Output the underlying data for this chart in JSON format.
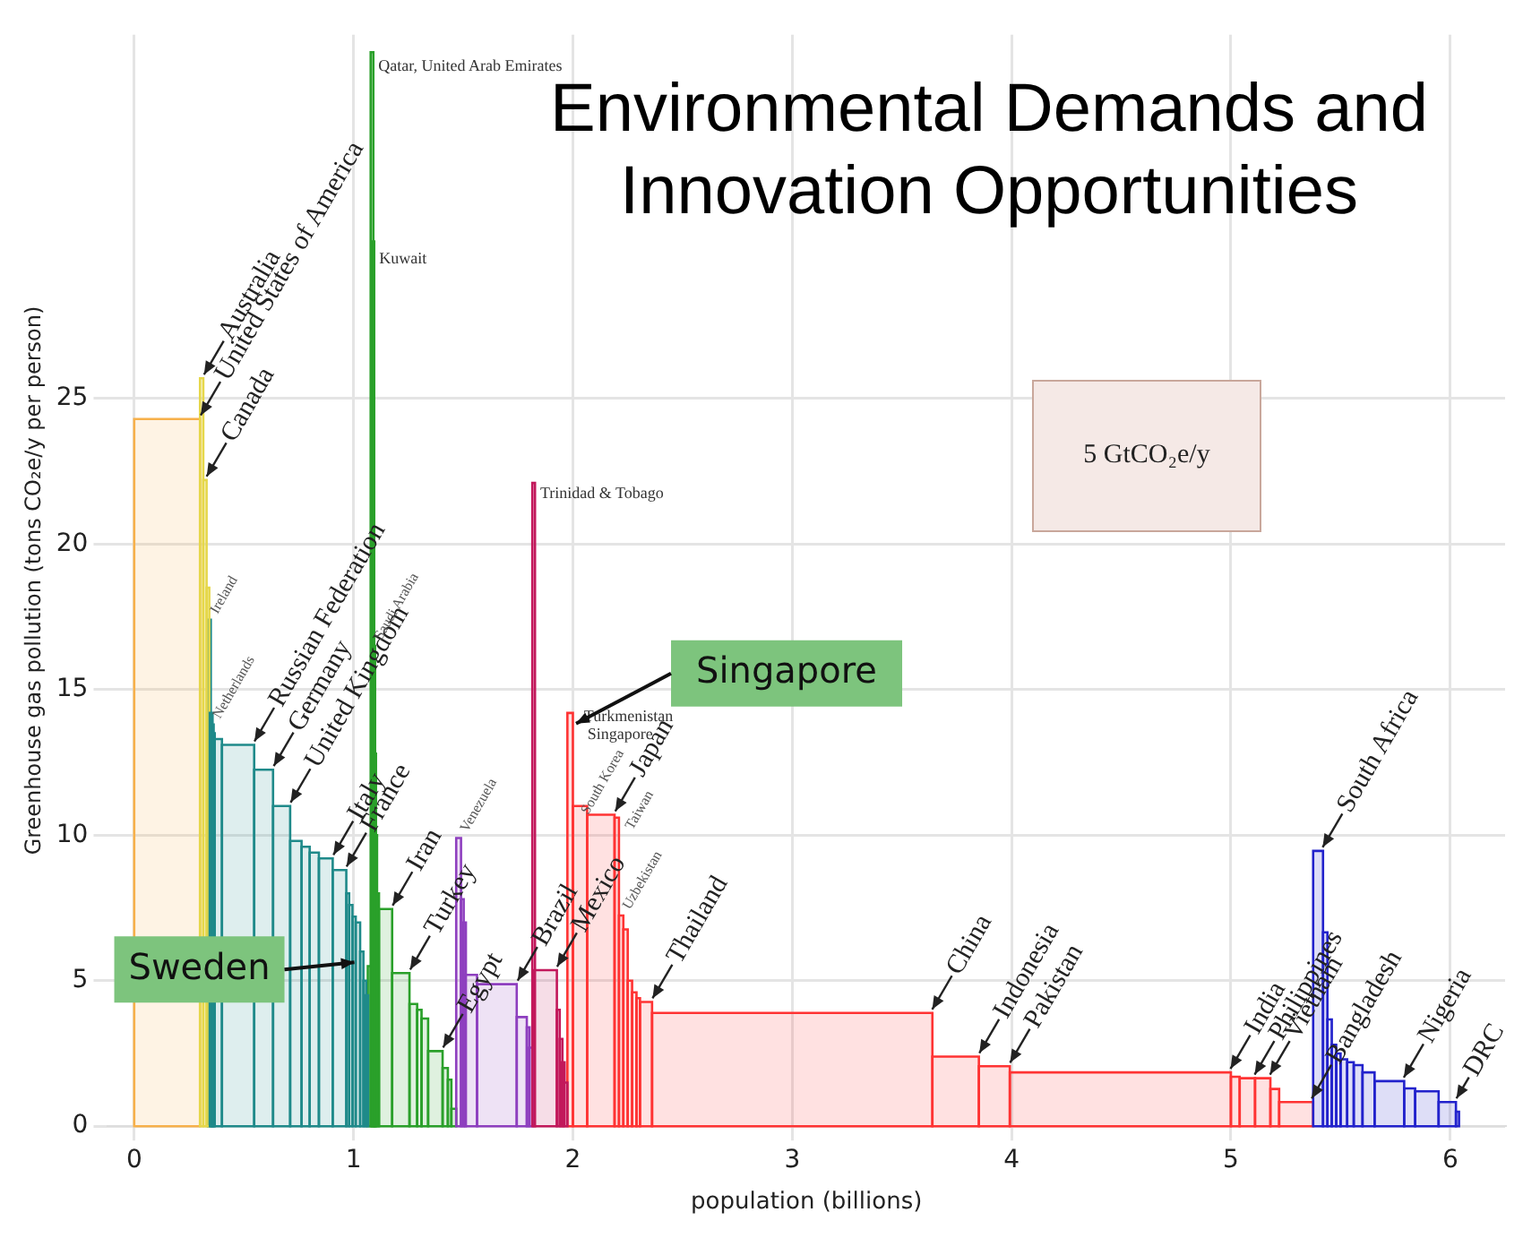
{
  "chart_data": {
    "type": "histogram",
    "title": "Environmental Demands and Innovation Opportunities",
    "xlabel": "population (billions)",
    "ylabel": "Greenhouse gas pollution (tons CO₂e/y per person)",
    "xlim": [
      -0.12,
      6.25
    ],
    "xticks": [
      0,
      1,
      2,
      3,
      4,
      5,
      6
    ],
    "ylim": [
      0,
      37.5
    ],
    "yticks": [
      0,
      5,
      10,
      15,
      20,
      25
    ],
    "grid": true,
    "bins": [
      0,
      0.3,
      0.315,
      0.33,
      0.337,
      0.345,
      0.35,
      0.355,
      0.36,
      0.4,
      0.547,
      0.633,
      0.711,
      0.763,
      0.8,
      0.842,
      0.905,
      0.967,
      0.98,
      0.995,
      1.01,
      1.03,
      1.045,
      1.055,
      1.065,
      1.078,
      1.082,
      1.086,
      1.09,
      1.095,
      1.1,
      1.116,
      1.176,
      1.255,
      1.29,
      1.31,
      1.34,
      1.406,
      1.43,
      1.446,
      1.468,
      1.49,
      1.5,
      1.51,
      1.563,
      1.744,
      1.79,
      1.8,
      1.815,
      1.822,
      1.927,
      1.94,
      1.95,
      1.96,
      1.975,
      2.0,
      2.065,
      2.19,
      2.21,
      2.23,
      2.25,
      2.27,
      2.29,
      2.306,
      2.361,
      3.639,
      3.851,
      3.992,
      5.0,
      5.04,
      5.11,
      5.18,
      5.22,
      5.375,
      5.42,
      5.44,
      5.46,
      5.48,
      5.5,
      5.53,
      5.56,
      5.6,
      5.655,
      5.79,
      5.84,
      5.947,
      6.026,
      6.04
    ],
    "values": [
      24.3,
      25.7,
      22.2,
      18.5,
      17.4,
      14.2,
      13.8,
      13.5,
      13.3,
      13.1,
      12.25,
      11.0,
      9.8,
      9.6,
      9.4,
      9.2,
      8.8,
      8.0,
      7.6,
      7.2,
      7.0,
      6.0,
      5.0,
      4.5,
      5.5,
      36.9,
      30.4,
      16.5,
      12.8,
      10.0,
      8.0,
      7.46,
      5.26,
      4.2,
      4.0,
      3.7,
      2.58,
      2.0,
      1.6,
      0.6,
      9.9,
      7.8,
      7.0,
      5.2,
      4.88,
      3.75,
      3.4,
      2.7,
      22.1,
      5.36,
      4.0,
      3.0,
      2.2,
      1.5,
      14.2,
      11.0,
      10.7,
      10.6,
      7.24,
      6.76,
      5.0,
      4.6,
      4.4,
      4.27,
      3.89,
      2.39,
      2.06,
      1.85,
      1.7,
      1.65,
      1.65,
      1.28,
      0.83,
      9.46,
      6.66,
      3.67,
      2.8,
      2.5,
      2.3,
      2.2,
      2.1,
      1.85,
      1.55,
      1.3,
      1.2,
      0.83,
      0.5
    ],
    "colors": [
      "#f7b04a",
      "#e6d74a",
      "#e6d74a",
      "#e6d74a",
      "#1f8a8a",
      "#1f8a8a",
      "#1f8a8a",
      "#1f8a8a",
      "#1f8a8a",
      "#1f8a8a",
      "#1f8a8a",
      "#1f8a8a",
      "#1f8a8a",
      "#1f8a8a",
      "#1f8a8a",
      "#1f8a8a",
      "#1f8a8a",
      "#1f8a8a",
      "#1f8a8a",
      "#1f8a8a",
      "#1f8a8a",
      "#1f8a8a",
      "#1f8a8a",
      "#1f8a8a",
      "#2aa02a",
      "#2aa02a",
      "#2aa02a",
      "#2aa02a",
      "#2aa02a",
      "#2aa02a",
      "#2aa02a",
      "#2aa02a",
      "#2aa02a",
      "#2aa02a",
      "#2aa02a",
      "#2aa02a",
      "#2aa02a",
      "#2aa02a",
      "#2aa02a",
      "#2aa02a",
      "#8e3fbf",
      "#8e3fbf",
      "#8e3fbf",
      "#8e3fbf",
      "#8e3fbf",
      "#8e3fbf",
      "#8e3fbf",
      "#8e3fbf",
      "#c2185b",
      "#c2185b",
      "#c2185b",
      "#c2185b",
      "#c2185b",
      "#c2185b",
      "#ff3333",
      "#ff3333",
      "#ff3333",
      "#ff3333",
      "#ff3333",
      "#ff3333",
      "#ff3333",
      "#ff3333",
      "#ff3333",
      "#ff3333",
      "#ff3333",
      "#ff3333",
      "#ff3333",
      "#ff3333",
      "#ff3333",
      "#ff3333",
      "#ff3333",
      "#ff3333",
      "#ff3333",
      "#2222cc",
      "#2222cc",
      "#2222cc",
      "#2222cc",
      "#2222cc",
      "#2222cc",
      "#2222cc",
      "#2222cc",
      "#2222cc",
      "#2222cc",
      "#2222cc",
      "#2222cc",
      "#2222cc",
      "#2222cc"
    ],
    "annotations": [
      {
        "text": "Australia",
        "x": 0.31,
        "y": 25.7
      },
      {
        "text": "United States of America",
        "x": 0.295,
        "y": 24.3
      },
      {
        "text": "Canada",
        "x": 0.322,
        "y": 22.2
      },
      {
        "text": "Ireland",
        "x": 0.34,
        "y": 17.4
      },
      {
        "text": "Netherlands",
        "x": 0.352,
        "y": 13.8
      },
      {
        "text": "Russian Federation",
        "x": 0.54,
        "y": 13.1
      },
      {
        "text": "Germany",
        "x": 0.628,
        "y": 12.25
      },
      {
        "text": "United Kingdom",
        "x": 0.705,
        "y": 11.0
      },
      {
        "text": "Italy",
        "x": 0.9,
        "y": 9.2
      },
      {
        "text": "France",
        "x": 0.96,
        "y": 8.8
      },
      {
        "text": "Saudi Arabia",
        "x": 1.088,
        "y": 16.5
      },
      {
        "text": "Qatar, United Arab Emirates",
        "x": 1.08,
        "y": 36.9
      },
      {
        "text": "Kuwait",
        "x": 1.084,
        "y": 30.4
      },
      {
        "text": "Iran",
        "x": 1.17,
        "y": 7.46
      },
      {
        "text": "Turkey",
        "x": 1.25,
        "y": 5.26
      },
      {
        "text": "Egypt",
        "x": 1.4,
        "y": 2.58
      },
      {
        "text": "Venezuela",
        "x": 1.48,
        "y": 9.9
      },
      {
        "text": "Brazil",
        "x": 1.74,
        "y": 4.88
      },
      {
        "text": "Mexico",
        "x": 1.92,
        "y": 5.36
      },
      {
        "text": "Trinidad & Tobago",
        "x": 1.818,
        "y": 22.1
      },
      {
        "text": "Turkmenistan",
        "x": 1.985,
        "y": 14.2
      },
      {
        "text": "Singapore",
        "x": 1.985,
        "y": 14.2
      },
      {
        "text": "South Korea",
        "x": 2.03,
        "y": 11.0
      },
      {
        "text": "Japan",
        "x": 2.185,
        "y": 10.7
      },
      {
        "text": "Taiwan",
        "x": 2.2,
        "y": 10.6
      },
      {
        "text": "Uzbekistan",
        "x": 2.22,
        "y": 7.24
      },
      {
        "text": "Thailand",
        "x": 2.355,
        "y": 4.27
      },
      {
        "text": "China",
        "x": 3.63,
        "y": 3.89
      },
      {
        "text": "Indonesia",
        "x": 3.845,
        "y": 2.39
      },
      {
        "text": "Pakistan",
        "x": 3.985,
        "y": 2.06
      },
      {
        "text": "India",
        "x": 4.99,
        "y": 1.85
      },
      {
        "text": "Philippines",
        "x": 5.1,
        "y": 1.65
      },
      {
        "text": "Vietnam",
        "x": 5.17,
        "y": 1.65
      },
      {
        "text": "South Africa",
        "x": 5.41,
        "y": 9.46
      },
      {
        "text": "Bangladesh",
        "x": 5.36,
        "y": 0.83
      },
      {
        "text": "Nigeria",
        "x": 5.78,
        "y": 1.55
      },
      {
        "text": "DRC",
        "x": 6.02,
        "y": 0.83
      },
      {
        "text": "Sweden",
        "x": 1.02,
        "y": 6.0
      },
      {
        "text": "Singapore",
        "x": 1.99,
        "y": 14.2
      },
      "5 GtCO₂e/y"
    ]
  }
}
